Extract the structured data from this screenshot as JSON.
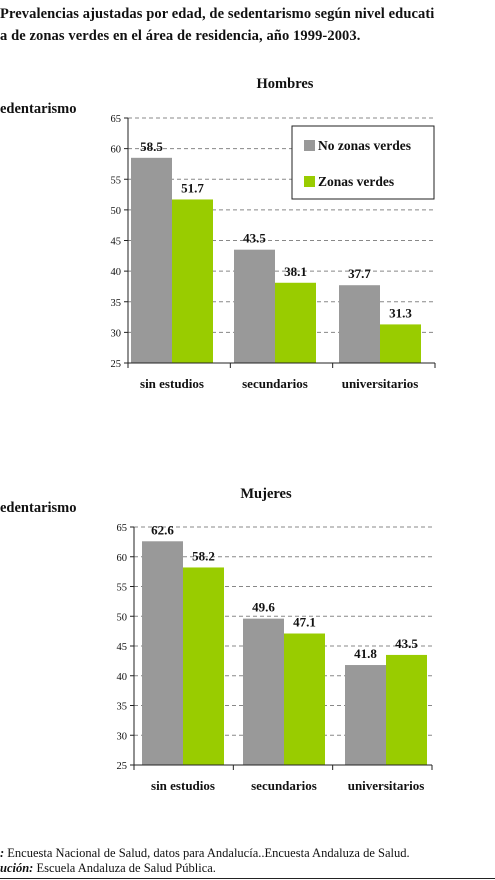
{
  "page": {
    "title_line1": "Prevalencias ajustadas por edad, de sedentarismo según nivel educati",
    "title_line2": "a de zonas verdes en el área de residencia, año 1999-2003.",
    "footer_line1_prefix": ":",
    "footer_line1_text": " Encuesta Nacional de Salud, datos para Andalucía..Encuesta Andaluza de Salud.",
    "footer_line2_prefix": "ución:",
    "footer_line2_text": " Escuela Andaluza de Salud Pública."
  },
  "colors": {
    "no_zonas": "#999999",
    "zonas": "#99cc00",
    "grid": "#888888",
    "axis": "#222222"
  },
  "chart_data": [
    {
      "type": "bar",
      "title": "Hombres",
      "ylabel": "edentarismo",
      "xlabel": "",
      "categories": [
        "sin estudios",
        "secundarios",
        "universitarios"
      ],
      "series": [
        {
          "name": "No zonas verdes",
          "values": [
            58.5,
            43.5,
            37.7
          ]
        },
        {
          "name": "Zonas verdes",
          "values": [
            51.7,
            38.1,
            31.3
          ]
        }
      ],
      "ylim": [
        25,
        65
      ],
      "yticks": [
        25,
        30,
        35,
        40,
        45,
        50,
        55,
        60,
        65
      ],
      "grid": true,
      "legend": "top-right",
      "data_labels": [
        [
          "58.5",
          "43.5",
          "37.7"
        ],
        [
          "51.7",
          "38.1",
          "31.3"
        ]
      ]
    },
    {
      "type": "bar",
      "title": "Mujeres",
      "ylabel": "edentarismo",
      "xlabel": "",
      "categories": [
        "sin estudios",
        "secundarios",
        "universitarios"
      ],
      "series": [
        {
          "name": "No zonas verdes",
          "values": [
            62.6,
            49.6,
            41.8
          ]
        },
        {
          "name": "Zonas verdes",
          "values": [
            58.2,
            47.1,
            43.5
          ]
        }
      ],
      "ylim": [
        25,
        65
      ],
      "yticks": [
        25,
        30,
        35,
        40,
        45,
        50,
        55,
        60,
        65
      ],
      "grid": true,
      "legend": "none",
      "data_labels": [
        [
          "62.6",
          "49.6",
          "41.8"
        ],
        [
          "58.2",
          "47.1",
          "43.5"
        ]
      ]
    }
  ]
}
